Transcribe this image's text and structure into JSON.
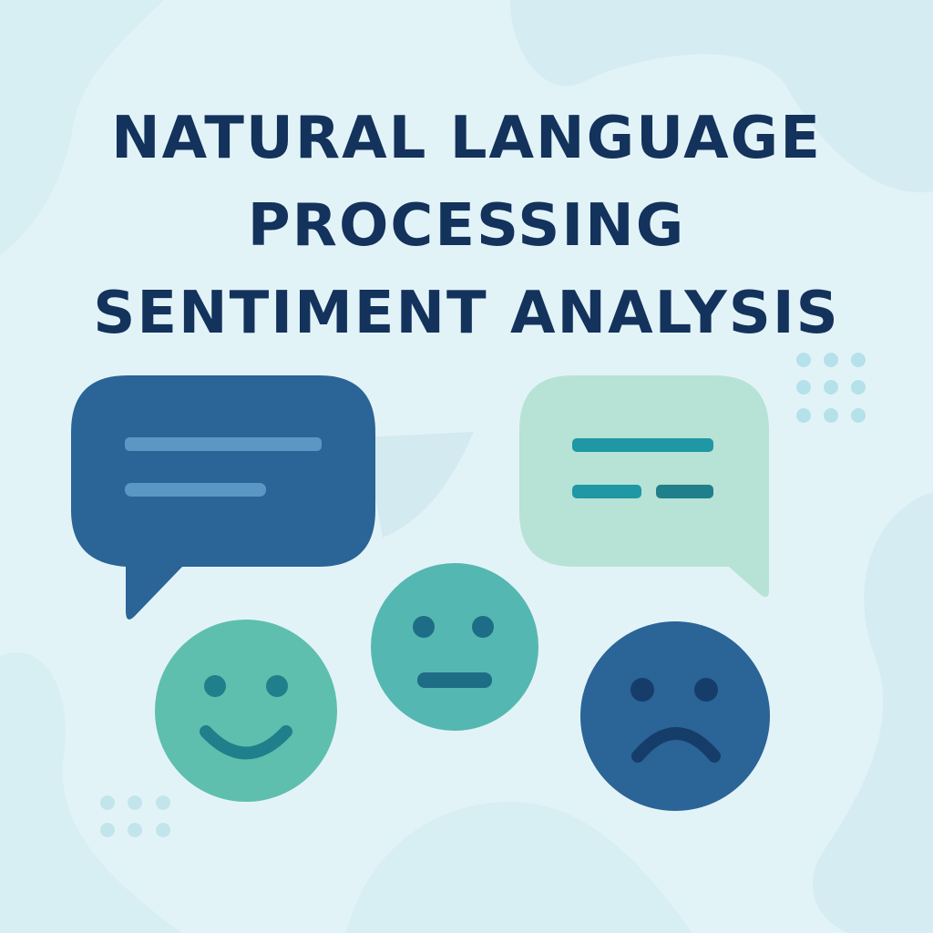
{
  "title": {
    "line1": "NATURAL LANGUAGE",
    "line2": "PROCESSING",
    "line3": "SENTIMENT ANALYSIS"
  },
  "illustration": {
    "speech_bubbles": [
      {
        "name": "chat-bubble-blue",
        "color": "#2b6496",
        "line_color": "#5b97c4"
      },
      {
        "name": "chat-bubble-mint",
        "color": "#b7e2d6",
        "line_color": "#1f97a4"
      }
    ],
    "faces": [
      {
        "name": "happy-face-icon",
        "expression": "smile",
        "color": "#5ebfae"
      },
      {
        "name": "neutral-face-icon",
        "expression": "neutral",
        "color": "#55b7b1"
      },
      {
        "name": "sad-face-icon",
        "expression": "frown",
        "color": "#2b6496"
      }
    ]
  },
  "colors": {
    "background": "#e2f3f7",
    "blob": "#d4ecf2",
    "title": "#13325c",
    "dots": "#b5e1ea"
  }
}
